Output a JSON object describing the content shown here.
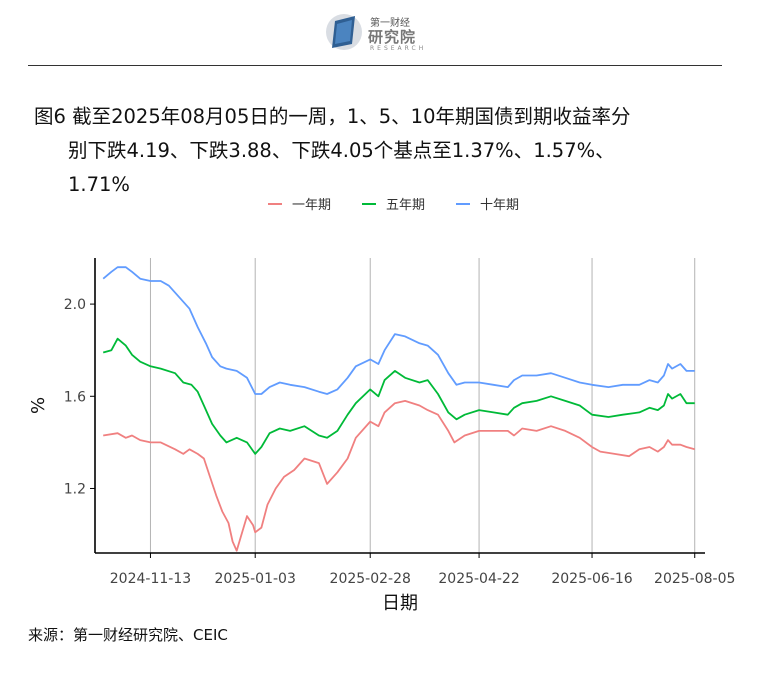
{
  "logo": {
    "cn_small": "第一财经",
    "cn_main": "研究院",
    "en": "RESEARCH"
  },
  "title": {
    "line1": "图6  截至2025年08月05日的一周，1、5、10年期国债到期收益率分",
    "line2": "别下跌4.19、下跌3.88、下跌4.05个基点至1.37%、1.57%、",
    "line3": "1.71%"
  },
  "source": "来源：第一财经研究院、CEIC",
  "chart_data": {
    "type": "line",
    "xlabel": "日期",
    "ylabel": "%",
    "ylim": [
      0.92,
      2.2
    ],
    "xlim": [
      "2024-10-17",
      "2025-08-10"
    ],
    "x_ticks": [
      "2024-11-13",
      "2025-01-03",
      "2025-02-28",
      "2025-04-22",
      "2025-06-16",
      "2025-08-05"
    ],
    "y_ticks": [
      1.2,
      1.6,
      2.0
    ],
    "y_tick_labels": [
      "1.2",
      "1.6",
      "2.0"
    ],
    "legend_position": "top-center",
    "grid": "vertical major lines only",
    "series": [
      {
        "name": "一年期",
        "color": "#F08080",
        "points": [
          [
            "2024-10-21",
            1.43
          ],
          [
            "2024-10-28",
            1.44
          ],
          [
            "2024-11-01",
            1.42
          ],
          [
            "2024-11-04",
            1.43
          ],
          [
            "2024-11-08",
            1.41
          ],
          [
            "2024-11-13",
            1.4
          ],
          [
            "2024-11-18",
            1.4
          ],
          [
            "2024-11-25",
            1.37
          ],
          [
            "2024-11-29",
            1.35
          ],
          [
            "2024-12-02",
            1.37
          ],
          [
            "2024-12-06",
            1.35
          ],
          [
            "2024-12-09",
            1.33
          ],
          [
            "2024-12-12",
            1.25
          ],
          [
            "2024-12-15",
            1.17
          ],
          [
            "2024-12-18",
            1.1
          ],
          [
            "2024-12-21",
            1.05
          ],
          [
            "2024-12-23",
            0.97
          ],
          [
            "2024-12-25",
            0.93
          ],
          [
            "2024-12-27",
            0.99
          ],
          [
            "2024-12-30",
            1.08
          ],
          [
            "2025-01-02",
            1.04
          ],
          [
            "2025-01-03",
            1.01
          ],
          [
            "2025-01-06",
            1.03
          ],
          [
            "2025-01-09",
            1.13
          ],
          [
            "2025-01-13",
            1.2
          ],
          [
            "2025-01-17",
            1.25
          ],
          [
            "2025-01-22",
            1.28
          ],
          [
            "2025-01-27",
            1.33
          ],
          [
            "2025-02-03",
            1.31
          ],
          [
            "2025-02-07",
            1.22
          ],
          [
            "2025-02-12",
            1.27
          ],
          [
            "2025-02-17",
            1.33
          ],
          [
            "2025-02-21",
            1.42
          ],
          [
            "2025-02-28",
            1.49
          ],
          [
            "2025-03-04",
            1.47
          ],
          [
            "2025-03-07",
            1.53
          ],
          [
            "2025-03-12",
            1.57
          ],
          [
            "2025-03-17",
            1.58
          ],
          [
            "2025-03-24",
            1.56
          ],
          [
            "2025-03-28",
            1.54
          ],
          [
            "2025-04-02",
            1.52
          ],
          [
            "2025-04-07",
            1.45
          ],
          [
            "2025-04-10",
            1.4
          ],
          [
            "2025-04-15",
            1.43
          ],
          [
            "2025-04-22",
            1.45
          ],
          [
            "2025-04-29",
            1.45
          ],
          [
            "2025-05-06",
            1.45
          ],
          [
            "2025-05-09",
            1.43
          ],
          [
            "2025-05-13",
            1.46
          ],
          [
            "2025-05-20",
            1.45
          ],
          [
            "2025-05-27",
            1.47
          ],
          [
            "2025-06-03",
            1.45
          ],
          [
            "2025-06-10",
            1.42
          ],
          [
            "2025-06-16",
            1.38
          ],
          [
            "2025-06-20",
            1.36
          ],
          [
            "2025-06-27",
            1.35
          ],
          [
            "2025-07-04",
            1.34
          ],
          [
            "2025-07-09",
            1.37
          ],
          [
            "2025-07-14",
            1.38
          ],
          [
            "2025-07-18",
            1.36
          ],
          [
            "2025-07-21",
            1.38
          ],
          [
            "2025-07-23",
            1.41
          ],
          [
            "2025-07-25",
            1.39
          ],
          [
            "2025-07-29",
            1.39
          ],
          [
            "2025-08-01",
            1.38
          ],
          [
            "2025-08-05",
            1.37
          ]
        ]
      },
      {
        "name": "五年期",
        "color": "#00BA38",
        "points": [
          [
            "2024-10-21",
            1.79
          ],
          [
            "2024-10-25",
            1.8
          ],
          [
            "2024-10-28",
            1.85
          ],
          [
            "2024-11-01",
            1.82
          ],
          [
            "2024-11-04",
            1.78
          ],
          [
            "2024-11-08",
            1.75
          ],
          [
            "2024-11-13",
            1.73
          ],
          [
            "2024-11-18",
            1.72
          ],
          [
            "2024-11-25",
            1.7
          ],
          [
            "2024-11-29",
            1.66
          ],
          [
            "2024-12-03",
            1.65
          ],
          [
            "2024-12-06",
            1.62
          ],
          [
            "2024-12-09",
            1.56
          ],
          [
            "2024-12-13",
            1.48
          ],
          [
            "2024-12-17",
            1.43
          ],
          [
            "2024-12-20",
            1.4
          ],
          [
            "2024-12-25",
            1.42
          ],
          [
            "2024-12-30",
            1.4
          ],
          [
            "2025-01-03",
            1.35
          ],
          [
            "2025-01-06",
            1.38
          ],
          [
            "2025-01-10",
            1.44
          ],
          [
            "2025-01-15",
            1.46
          ],
          [
            "2025-01-20",
            1.45
          ],
          [
            "2025-01-27",
            1.47
          ],
          [
            "2025-02-03",
            1.43
          ],
          [
            "2025-02-07",
            1.42
          ],
          [
            "2025-02-12",
            1.45
          ],
          [
            "2025-02-17",
            1.52
          ],
          [
            "2025-02-21",
            1.57
          ],
          [
            "2025-02-28",
            1.63
          ],
          [
            "2025-03-04",
            1.6
          ],
          [
            "2025-03-07",
            1.67
          ],
          [
            "2025-03-12",
            1.71
          ],
          [
            "2025-03-17",
            1.68
          ],
          [
            "2025-03-24",
            1.66
          ],
          [
            "2025-03-28",
            1.67
          ],
          [
            "2025-04-02",
            1.61
          ],
          [
            "2025-04-07",
            1.53
          ],
          [
            "2025-04-11",
            1.5
          ],
          [
            "2025-04-15",
            1.52
          ],
          [
            "2025-04-22",
            1.54
          ],
          [
            "2025-04-29",
            1.53
          ],
          [
            "2025-05-06",
            1.52
          ],
          [
            "2025-05-09",
            1.55
          ],
          [
            "2025-05-13",
            1.57
          ],
          [
            "2025-05-20",
            1.58
          ],
          [
            "2025-05-27",
            1.6
          ],
          [
            "2025-06-03",
            1.58
          ],
          [
            "2025-06-10",
            1.56
          ],
          [
            "2025-06-16",
            1.52
          ],
          [
            "2025-06-24",
            1.51
          ],
          [
            "2025-07-01",
            1.52
          ],
          [
            "2025-07-09",
            1.53
          ],
          [
            "2025-07-14",
            1.55
          ],
          [
            "2025-07-18",
            1.54
          ],
          [
            "2025-07-21",
            1.56
          ],
          [
            "2025-07-23",
            1.61
          ],
          [
            "2025-07-25",
            1.59
          ],
          [
            "2025-07-29",
            1.61
          ],
          [
            "2025-08-01",
            1.57
          ],
          [
            "2025-08-05",
            1.57
          ]
        ]
      },
      {
        "name": "十年期",
        "color": "#619CFF",
        "points": [
          [
            "2024-10-21",
            2.11
          ],
          [
            "2024-10-25",
            2.14
          ],
          [
            "2024-10-28",
            2.16
          ],
          [
            "2024-11-01",
            2.16
          ],
          [
            "2024-11-04",
            2.14
          ],
          [
            "2024-11-08",
            2.11
          ],
          [
            "2024-11-13",
            2.1
          ],
          [
            "2024-11-18",
            2.1
          ],
          [
            "2024-11-22",
            2.08
          ],
          [
            "2024-11-27",
            2.03
          ],
          [
            "2024-12-02",
            1.98
          ],
          [
            "2024-12-06",
            1.9
          ],
          [
            "2024-12-10",
            1.83
          ],
          [
            "2024-12-13",
            1.77
          ],
          [
            "2024-12-17",
            1.73
          ],
          [
            "2024-12-20",
            1.72
          ],
          [
            "2024-12-25",
            1.71
          ],
          [
            "2024-12-30",
            1.68
          ],
          [
            "2025-01-03",
            1.61
          ],
          [
            "2025-01-06",
            1.61
          ],
          [
            "2025-01-10",
            1.64
          ],
          [
            "2025-01-15",
            1.66
          ],
          [
            "2025-01-20",
            1.65
          ],
          [
            "2025-01-27",
            1.64
          ],
          [
            "2025-02-03",
            1.62
          ],
          [
            "2025-02-07",
            1.61
          ],
          [
            "2025-02-12",
            1.63
          ],
          [
            "2025-02-17",
            1.68
          ],
          [
            "2025-02-21",
            1.73
          ],
          [
            "2025-02-28",
            1.76
          ],
          [
            "2025-03-04",
            1.74
          ],
          [
            "2025-03-07",
            1.8
          ],
          [
            "2025-03-12",
            1.87
          ],
          [
            "2025-03-17",
            1.86
          ],
          [
            "2025-03-24",
            1.83
          ],
          [
            "2025-03-28",
            1.82
          ],
          [
            "2025-04-02",
            1.78
          ],
          [
            "2025-04-07",
            1.7
          ],
          [
            "2025-04-11",
            1.65
          ],
          [
            "2025-04-15",
            1.66
          ],
          [
            "2025-04-22",
            1.66
          ],
          [
            "2025-04-29",
            1.65
          ],
          [
            "2025-05-06",
            1.64
          ],
          [
            "2025-05-09",
            1.67
          ],
          [
            "2025-05-13",
            1.69
          ],
          [
            "2025-05-20",
            1.69
          ],
          [
            "2025-05-27",
            1.7
          ],
          [
            "2025-06-03",
            1.68
          ],
          [
            "2025-06-10",
            1.66
          ],
          [
            "2025-06-16",
            1.65
          ],
          [
            "2025-06-24",
            1.64
          ],
          [
            "2025-07-01",
            1.65
          ],
          [
            "2025-07-09",
            1.65
          ],
          [
            "2025-07-14",
            1.67
          ],
          [
            "2025-07-18",
            1.66
          ],
          [
            "2025-07-21",
            1.69
          ],
          [
            "2025-07-23",
            1.74
          ],
          [
            "2025-07-25",
            1.72
          ],
          [
            "2025-07-29",
            1.74
          ],
          [
            "2025-08-01",
            1.71
          ],
          [
            "2025-08-05",
            1.71
          ]
        ]
      }
    ]
  }
}
